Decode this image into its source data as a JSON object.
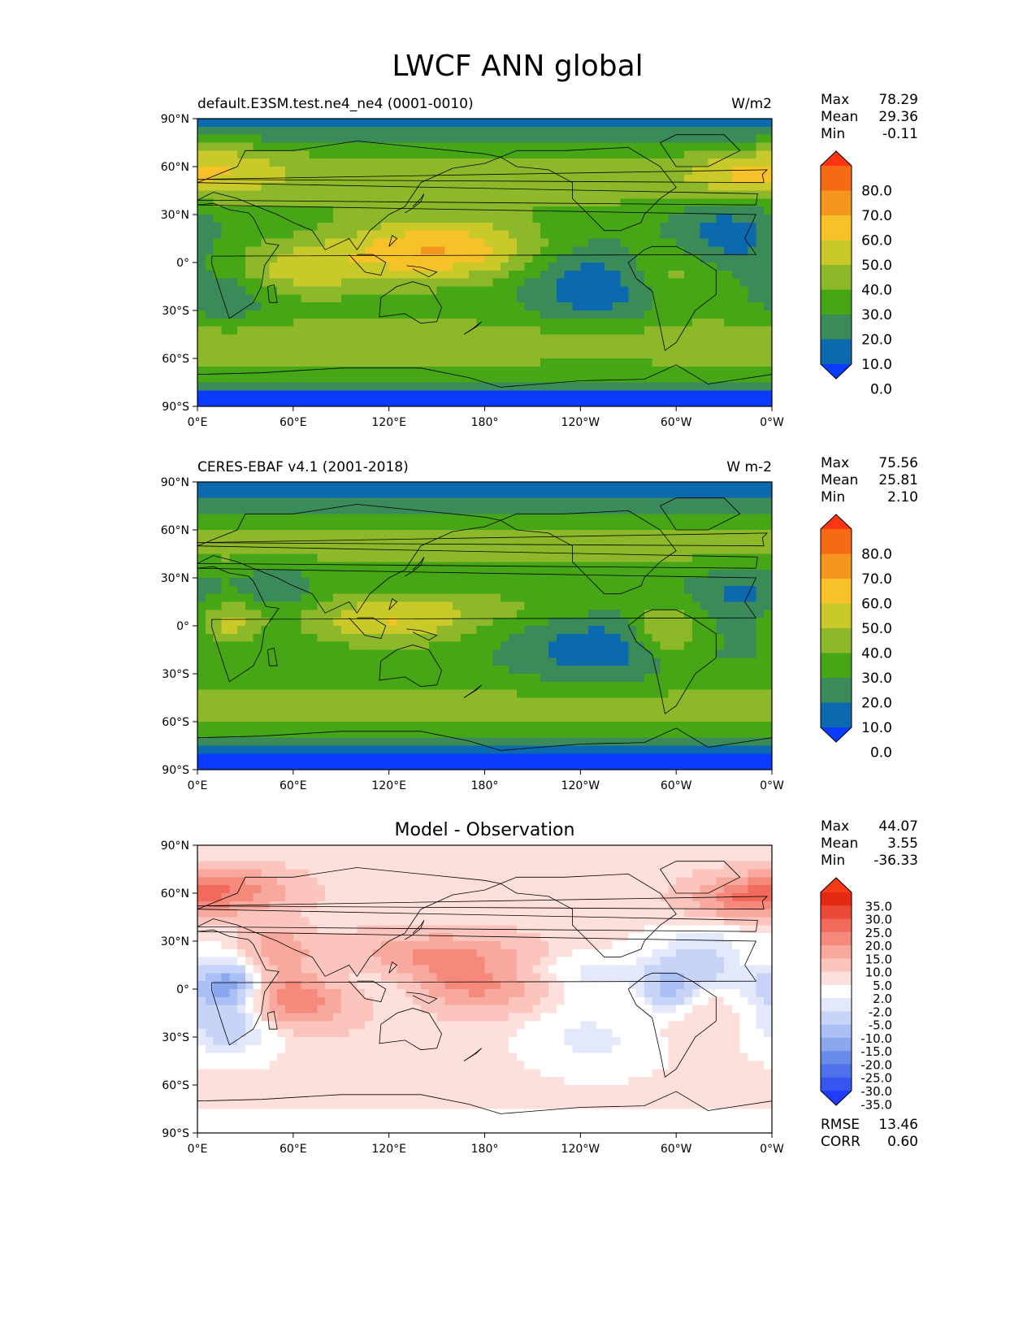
{
  "figure_title": "LWCF ANN global",
  "xtick_labels": [
    "0°E",
    "60°E",
    "120°E",
    "180°",
    "120°W",
    "60°W",
    "0°W"
  ],
  "ytick_labels": [
    "90°N",
    "60°N",
    "30°N",
    "0°",
    "30°S",
    "60°S",
    "90°S"
  ],
  "colors": {
    "abs_levels": [
      "#0a3cff",
      "#0b6aad",
      "#3a8a5a",
      "#46a615",
      "#8db82a",
      "#c9c92a",
      "#f7c12a",
      "#f7961e",
      "#f76a14",
      "#fd3512"
    ],
    "diff_levels": [
      "#1f3bff",
      "#3656f0",
      "#4f72ea",
      "#6a8ce9",
      "#8ba7ee",
      "#aabff3",
      "#c7d4f7",
      "#e3e9fb",
      "#ffffff",
      "#fde0dc",
      "#fbc5bd",
      "#f8a89d",
      "#f5897c",
      "#f16a5b",
      "#ec4a38",
      "#e52a14",
      "#f53a16"
    ]
  },
  "chart_data": [
    {
      "type": "heatmap",
      "title_left": "default.E3SM.test.ne4_ne4 (0001-0010)",
      "title_right": "W/m2",
      "stats": [
        {
          "label": "Max",
          "value": "78.29"
        },
        {
          "label": "Mean",
          "value": "29.36"
        },
        {
          "label": "Min",
          "value": "-0.11"
        }
      ],
      "colorbar_labels": [
        "80.0",
        "70.0",
        "60.0",
        "50.0",
        "40.0",
        "30.0",
        "20.0",
        "10.0",
        "0.0"
      ],
      "xlim": [
        0,
        360
      ],
      "ylim": [
        -90,
        90
      ],
      "grid": false
    },
    {
      "type": "heatmap",
      "title_left": "CERES-EBAF v4.1 (2001-2018)",
      "title_right": "W m-2",
      "stats": [
        {
          "label": "Max",
          "value": "75.56"
        },
        {
          "label": "Mean",
          "value": "25.81"
        },
        {
          "label": "Min",
          "value": "2.10"
        }
      ],
      "colorbar_labels": [
        "80.0",
        "70.0",
        "60.0",
        "50.0",
        "40.0",
        "30.0",
        "20.0",
        "10.0",
        "0.0"
      ],
      "xlim": [
        0,
        360
      ],
      "ylim": [
        -90,
        90
      ],
      "grid": false
    },
    {
      "type": "heatmap",
      "title_center": "Model - Observation",
      "stats": [
        {
          "label": "Max",
          "value": "44.07"
        },
        {
          "label": "Mean",
          "value": "3.55"
        },
        {
          "label": "Min",
          "value": "-36.33"
        }
      ],
      "colorbar_labels": [
        "35.0",
        "30.0",
        "25.0",
        "20.0",
        "15.0",
        "10.0",
        "5.0",
        "2.0",
        "-2.0",
        "-5.0",
        "-10.0",
        "-15.0",
        "-20.0",
        "-25.0",
        "-30.0",
        "-35.0"
      ],
      "metrics": [
        {
          "label": "RMSE",
          "value": "13.46"
        },
        {
          "label": "CORR",
          "value": "0.60"
        }
      ],
      "xlim": [
        0,
        360
      ],
      "ylim": [
        -90,
        90
      ],
      "grid": false
    }
  ]
}
